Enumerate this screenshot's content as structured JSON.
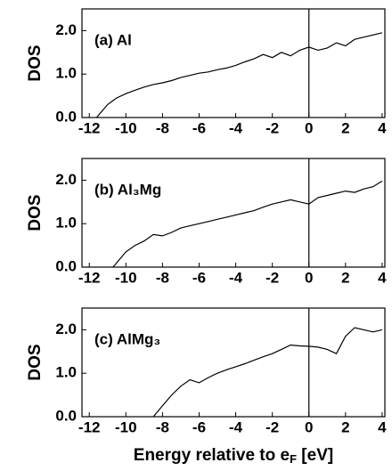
{
  "chart_data": [
    {
      "type": "line",
      "annotation": "(a) Al",
      "ylabel": "DOS",
      "vline": 0,
      "xlim": [
        -12.4,
        4.15
      ],
      "ylim": [
        0,
        2.5
      ],
      "xticks": [
        -12,
        -10,
        -8,
        -6,
        -4,
        -2,
        0,
        2,
        4
      ],
      "yticks": [
        {
          "value": 0,
          "label": "0.0"
        },
        {
          "value": 1,
          "label": "1.0"
        },
        {
          "value": 2,
          "label": "2.0"
        }
      ],
      "x": [
        -11.6,
        -11,
        -10.5,
        -10,
        -9.5,
        -9,
        -8.5,
        -8,
        -7.5,
        -7,
        -6.5,
        -6,
        -5.5,
        -5,
        -4.5,
        -4,
        -3.5,
        -3,
        -2.5,
        -2,
        -1.5,
        -1,
        -0.5,
        0,
        0.5,
        1,
        1.5,
        2,
        2.5,
        3,
        3.5,
        4
      ],
      "series": [
        {
          "name": "Al",
          "color": "#000000",
          "values": [
            0,
            0.3,
            0.45,
            0.55,
            0.63,
            0.7,
            0.76,
            0.8,
            0.85,
            0.92,
            0.97,
            1.02,
            1.05,
            1.1,
            1.14,
            1.2,
            1.28,
            1.35,
            1.45,
            1.38,
            1.5,
            1.42,
            1.55,
            1.62,
            1.55,
            1.6,
            1.72,
            1.65,
            1.8,
            1.85,
            1.9,
            1.95
          ]
        }
      ]
    },
    {
      "type": "line",
      "annotation": "(b) Al₃Mg",
      "ylabel": "DOS",
      "vline": 0,
      "xlim": [
        -12.4,
        4.15
      ],
      "ylim": [
        0,
        2.5
      ],
      "xticks": [
        -12,
        -10,
        -8,
        -6,
        -4,
        -2,
        0,
        2,
        4
      ],
      "yticks": [
        {
          "value": 0,
          "label": "0.0"
        },
        {
          "value": 1,
          "label": "1.0"
        },
        {
          "value": 2,
          "label": "2.0"
        }
      ],
      "x": [
        -10.7,
        -10.3,
        -10,
        -9.5,
        -9,
        -8.5,
        -8,
        -7.5,
        -7,
        -6.5,
        -6,
        -5.5,
        -5,
        -4.5,
        -4,
        -3.5,
        -3,
        -2.5,
        -2,
        -1.5,
        -1,
        -0.5,
        0,
        0.5,
        1,
        1.5,
        2,
        2.5,
        3,
        3.5,
        4
      ],
      "series": [
        {
          "name": "Al₃Mg",
          "color": "#000000",
          "values": [
            0,
            0.2,
            0.35,
            0.5,
            0.6,
            0.75,
            0.72,
            0.8,
            0.9,
            0.95,
            1.0,
            1.05,
            1.1,
            1.15,
            1.2,
            1.25,
            1.3,
            1.38,
            1.45,
            1.5,
            1.55,
            1.5,
            1.45,
            1.6,
            1.65,
            1.7,
            1.75,
            1.72,
            1.8,
            1.85,
            1.98
          ]
        }
      ]
    },
    {
      "type": "line",
      "annotation": "(c) AlMg₃",
      "ylabel": "DOS",
      "vline": 0,
      "xlabel": "Energy relative to e",
      "xlabel_sub": "F",
      "xlabel_end": " [eV]",
      "xlim": [
        -12.4,
        4.15
      ],
      "ylim": [
        0,
        2.5
      ],
      "xticks": [
        -12,
        -10,
        -8,
        -6,
        -4,
        -2,
        0,
        2,
        4
      ],
      "yticks": [
        {
          "value": 0,
          "label": "0.0"
        },
        {
          "value": 1,
          "label": "1.0"
        },
        {
          "value": 2,
          "label": "2.0"
        }
      ],
      "x": [
        -8.5,
        -8,
        -7.5,
        -7,
        -6.5,
        -6,
        -5.5,
        -5,
        -4.5,
        -4,
        -3.5,
        -3,
        -2.5,
        -2,
        -1.5,
        -1,
        -0.5,
        0,
        0.5,
        1,
        1.5,
        2,
        2.5,
        3,
        3.5,
        4
      ],
      "series": [
        {
          "name": "AlMg₃",
          "color": "#000000",
          "values": [
            0,
            0.25,
            0.5,
            0.7,
            0.85,
            0.78,
            0.9,
            1.0,
            1.08,
            1.15,
            1.22,
            1.3,
            1.38,
            1.45,
            1.55,
            1.65,
            1.63,
            1.62,
            1.6,
            1.55,
            1.45,
            1.85,
            2.05,
            2.0,
            1.95,
            2.0
          ]
        }
      ]
    }
  ]
}
